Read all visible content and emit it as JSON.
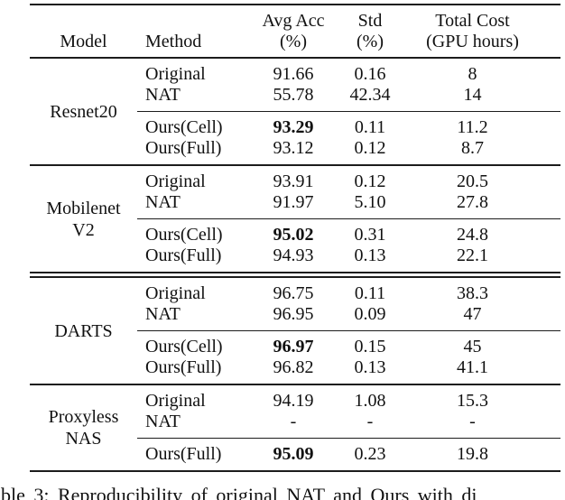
{
  "page": {
    "background": "#ffffff",
    "rule_color": "#1c1c1c"
  },
  "table": {
    "header": {
      "model": "Model",
      "method": "Method",
      "avg_acc_line1": "Avg Acc",
      "avg_acc_line2": "(%)",
      "std_line1": "Std",
      "std_line2": "(%)",
      "cost_line1": "Total Cost",
      "cost_line2": "(GPU hours)"
    },
    "groups": [
      {
        "model_lines": [
          "Resnet20"
        ],
        "top_rows": [
          {
            "method": "Original",
            "acc": "91.66",
            "std": "0.16",
            "cost": "8"
          },
          {
            "method": "NAT",
            "acc": "55.78",
            "std": "42.34",
            "cost": "14"
          }
        ],
        "bottom_rows": [
          {
            "method": "Ours(Cell)",
            "acc": "93.29",
            "acc_bold": true,
            "std": "0.11",
            "cost": "11.2"
          },
          {
            "method": "Ours(Full)",
            "acc": "93.12",
            "acc_bold": false,
            "std": "0.12",
            "cost": "8.7"
          }
        ]
      },
      {
        "model_lines": [
          "Mobilenet",
          "V2"
        ],
        "top_rows": [
          {
            "method": "Original",
            "acc": "93.91",
            "std": "0.12",
            "cost": "20.5"
          },
          {
            "method": "NAT",
            "acc": "91.97",
            "std": "5.10",
            "cost": "27.8"
          }
        ],
        "bottom_rows": [
          {
            "method": "Ours(Cell)",
            "acc": "95.02",
            "acc_bold": true,
            "std": "0.31",
            "cost": "24.8"
          },
          {
            "method": "Ours(Full)",
            "acc": "94.93",
            "acc_bold": false,
            "std": "0.13",
            "cost": "22.1"
          }
        ]
      },
      {
        "model_lines": [
          "DARTS"
        ],
        "top_rows": [
          {
            "method": "Original",
            "acc": "96.75",
            "std": "0.11",
            "cost": "38.3"
          },
          {
            "method": "NAT",
            "acc": "96.95",
            "std": "0.09",
            "cost": "47"
          }
        ],
        "bottom_rows": [
          {
            "method": "Ours(Cell)",
            "acc": "96.97",
            "acc_bold": true,
            "std": "0.15",
            "cost": "45"
          },
          {
            "method": "Ours(Full)",
            "acc": "96.82",
            "acc_bold": false,
            "std": "0.13",
            "cost": "41.1"
          }
        ]
      },
      {
        "model_lines": [
          "Proxyless",
          "NAS"
        ],
        "top_rows": [
          {
            "method": "Original",
            "acc": "94.19",
            "std": "1.08",
            "cost": "15.3"
          },
          {
            "method": "NAT",
            "acc": "-",
            "std": "-",
            "cost": "-"
          }
        ],
        "bottom_rows": [
          {
            "method": "Ours(Full)",
            "acc": "95.09",
            "acc_bold": true,
            "std": "0.23",
            "cost": "19.8"
          }
        ]
      }
    ]
  },
  "caption": {
    "visible_text": "ble 3: Reproducibility of original NAT and Ours with di"
  }
}
